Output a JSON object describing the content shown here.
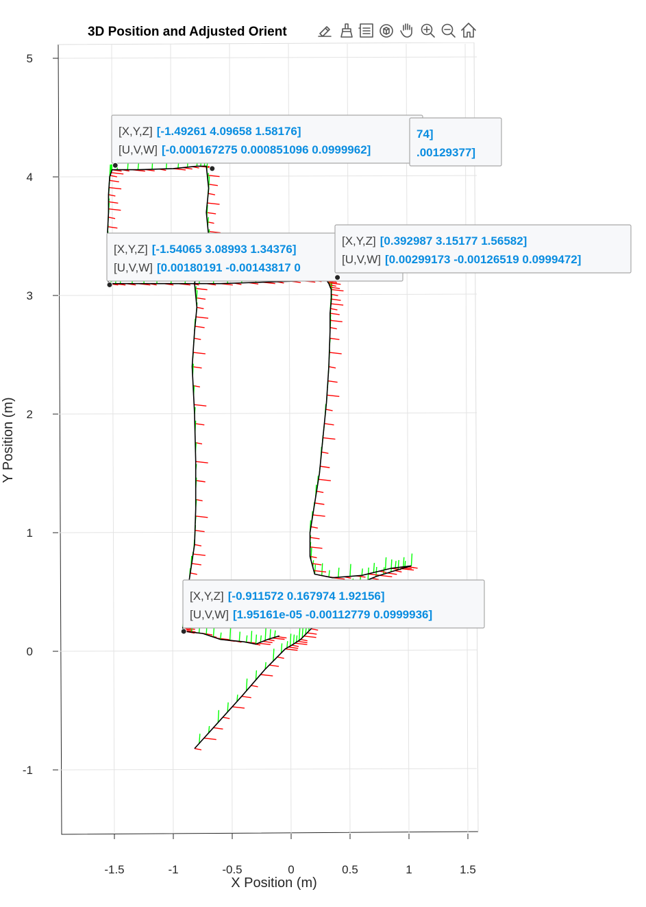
{
  "chart_data": {
    "type": "line",
    "title": "3D Position and Adjusted Orient",
    "xlabel": "X Position (m)",
    "ylabel": "Y Position (m)",
    "xlim": [
      -1.95,
      1.58
    ],
    "ylim": [
      -1.55,
      5.1
    ],
    "xticks": [
      -1.5,
      -1,
      -0.5,
      0,
      0.5,
      1,
      1.5
    ],
    "xtick_labels": [
      "-1.5",
      "-1",
      "-0.5",
      "0",
      "0.5",
      "1",
      "1.5"
    ],
    "yticks": [
      -1,
      0,
      1,
      2,
      3,
      4,
      5
    ],
    "ytick_labels": [
      "-1",
      "0",
      "1",
      "2",
      "3",
      "4",
      "5"
    ],
    "grid": true,
    "series": [
      {
        "style": "black line",
        "color": "#000000",
        "x": [
          -0.82,
          -0.62,
          -0.42,
          -0.22,
          -0.05,
          0.02,
          0.08,
          0.15,
          0.25,
          0.4,
          0.55,
          0.72,
          0.88,
          1.02,
          0.85,
          0.6,
          0.35,
          0.2,
          0.16,
          0.16,
          0.2,
          0.24,
          0.27,
          0.3,
          0.32,
          0.33,
          0.33,
          0.34,
          0.34,
          0.32,
          0.3,
          0.25,
          0.0,
          -0.3,
          -0.6,
          -0.9,
          -1.2,
          -1.45,
          -1.55,
          -1.56,
          -1.56,
          -1.55,
          -1.55,
          -1.54,
          -1.52,
          -1.3,
          -1.0,
          -0.8,
          -0.72,
          -0.7,
          -0.72,
          -0.7,
          -0.78,
          -0.82,
          -0.8,
          -0.82,
          -0.84,
          -0.82,
          -0.81,
          -0.81,
          -0.82,
          -0.85,
          -0.88,
          -0.9,
          -0.91,
          -0.92,
          -0.92,
          -0.91,
          -0.75,
          -0.6,
          -0.4,
          -0.3,
          -0.2,
          -0.1
        ],
        "y": [
          -0.82,
          -0.6,
          -0.38,
          -0.15,
          0.02,
          0.06,
          0.1,
          0.17,
          0.27,
          0.42,
          0.56,
          0.63,
          0.68,
          0.72,
          0.7,
          0.64,
          0.62,
          0.65,
          0.8,
          1.0,
          1.25,
          1.5,
          1.8,
          2.1,
          2.4,
          2.7,
          2.85,
          2.95,
          3.05,
          3.1,
          3.13,
          3.13,
          3.12,
          3.11,
          3.1,
          3.1,
          3.1,
          3.1,
          3.1,
          3.3,
          3.5,
          3.7,
          3.85,
          4.0,
          4.06,
          4.06,
          4.07,
          4.09,
          4.09,
          3.9,
          3.7,
          3.5,
          3.3,
          3.1,
          2.9,
          2.7,
          2.4,
          2.0,
          1.6,
          1.2,
          0.9,
          0.7,
          0.5,
          0.35,
          0.25,
          0.2,
          0.18,
          0.168,
          0.15,
          0.1,
          0.08,
          0.06,
          0.1,
          0.13
        ]
      }
    ],
    "quivers": [
      {
        "name": "U",
        "color": "#ff0000"
      },
      {
        "name": "V",
        "color": "#00ff00"
      }
    ],
    "datatips": [
      {
        "x": -1.49261,
        "y": 4.09658,
        "xyz_key": "[X,Y,Z]",
        "xyz_val": "[-1.49261 4.09658 1.58176]",
        "uvw_key": "[U,V,W]",
        "uvw_val": "[-0.000167275 0.000851096 0.0999962]"
      },
      {
        "x": -0.67,
        "y": 4.07,
        "xyz_key": "",
        "xyz_val": "74]",
        "uvw_key": "",
        "uvw_val": ".00129377]"
      },
      {
        "x": -1.54065,
        "y": 3.08993,
        "xyz_key": "[X,Y,Z]",
        "xyz_val": "[-1.54065 3.08993 1.34376]",
        "uvw_key": "[U,V,W]",
        "uvw_val": "[0.00180191 -0.00143817 0"
      },
      {
        "x": 0.392987,
        "y": 3.15177,
        "xyz_key": "[X,Y,Z]",
        "xyz_val": "[0.392987 3.15177 1.56582]",
        "uvw_key": "[U,V,W]",
        "uvw_val": "[0.00299173 -0.00126519 0.0999472]"
      },
      {
        "x": -0.911572,
        "y": 0.167974,
        "xyz_key": "[X,Y,Z]",
        "xyz_val": "[-0.911572 0.167974 1.92156]",
        "uvw_key": "[U,V,W]",
        "uvw_val": "[1.95161e-05 -0.00112779 0.0999936]"
      }
    ]
  },
  "toolbar": {
    "buttons": [
      {
        "icon": "brush-edit-icon"
      },
      {
        "icon": "brush-icon"
      },
      {
        "icon": "legend-icon"
      },
      {
        "icon": "rotate-3d-icon"
      },
      {
        "icon": "pan-hand-icon"
      },
      {
        "icon": "zoom-in-icon"
      },
      {
        "icon": "zoom-out-icon"
      },
      {
        "icon": "home-icon"
      }
    ]
  }
}
